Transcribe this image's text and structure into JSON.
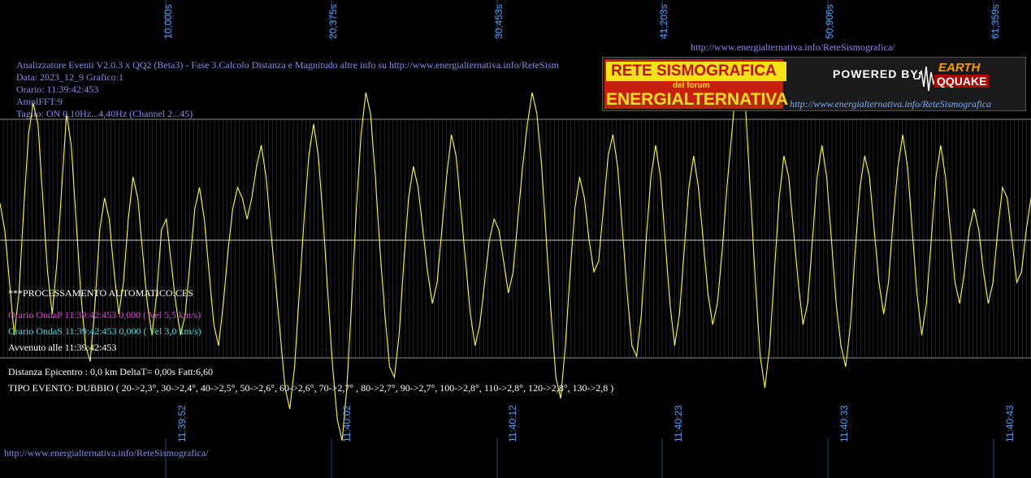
{
  "header": {
    "line1": "Analizzatore Eventi V2.0.3 x QQ2 (Beta3) - Fase 3.Calcolo Distanza e Magnitudo altre info su http://www.energialternativa.info/ReteSism",
    "line2": "Data: 2023_12_9 Grafico:1",
    "line3": "Orario: 11:39:42:453",
    "line4": "AmplFFT:9",
    "line5": "Taglio: ON 0,10Hz...4,40Hz      (Channel 2...45)"
  },
  "top_url": "http://www.energialternativa.info/ReteSismografica/",
  "bottom_url": "http://www.energialternativa.info/ReteSismografica/",
  "processing": {
    "title": "***PROCESSAMENTO AUTOMATICO:CES",
    "onda_p": "Orario OndaP 11:39:42:453  0,000 ( Vel 5,5 km/s)",
    "onda_s": "Orario OndaS 11:39:42:453  0,000 ( Vel 3,0 km/s)",
    "avvenuto": "Avvenuto alle 11:39:42:453",
    "distanza": "Distanza Epicentro : 0,0 km DeltaT= 0,00s  Fatt:6,60",
    "tipo": "TIPO EVENTO: DUBBIO ( 20->2,3°, 30->2,4°, 40->2,5°, 50->2,6°, 60->2,6°, 70->2,7° , 80->2,7°, 90->2,7°, 100->2,8°, 110->2,8°, 120->2,8°, 130->2,8 )"
  },
  "top_ticks": [
    "10,000s",
    "20,375s",
    "30,453s",
    "41,203s",
    "50,906s",
    "61,359s"
  ],
  "bottom_ticks": [
    "11:39:52",
    "11:40:02",
    "11:40:12",
    "11:40:23",
    "11:40:33",
    "11:40:43"
  ],
  "logo": {
    "rete": "RETE SISMOGRAFICA",
    "forum": "del forum",
    "energ": "ENERGIALTERNATIVA",
    "powered": "POWERED BY:",
    "earth": "EARTH",
    "quake": "QQUAKE",
    "url": "http://www.energialternativa.info/ReteSismografica"
  },
  "colors": {
    "trace": "#ffff33",
    "grid": "#8a8a8a",
    "tick": "#4d9fff",
    "text": "#8a8cf0"
  },
  "chart_data": {
    "type": "line",
    "title": "",
    "xlabel": "",
    "ylabel": "",
    "values": [
      0.35,
      0.1,
      -0.4,
      -0.9,
      -0.5,
      0.3,
      1.0,
      1.3,
      1.1,
      0.4,
      -0.3,
      -0.7,
      -0.2,
      0.5,
      1.2,
      0.9,
      0.2,
      -0.5,
      -1.0,
      -1.15,
      -0.6,
      0.1,
      0.4,
      0.2,
      -0.3,
      -0.7,
      -0.4,
      0.2,
      0.6,
      0.4,
      -0.1,
      -0.6,
      -0.9,
      -0.5,
      0.1,
      0.2,
      -0.2,
      -0.6,
      -0.9,
      -0.7,
      -0.2,
      0.3,
      0.5,
      0.2,
      -0.3,
      -0.8,
      -1.0,
      -0.6,
      -0.1,
      0.3,
      0.5,
      0.4,
      0.2,
      0.4,
      0.7,
      0.9,
      0.6,
      0.1,
      -0.4,
      -0.9,
      -1.4,
      -1.6,
      -1.2,
      -0.5,
      0.2,
      0.8,
      1.1,
      0.8,
      0.2,
      -0.5,
      -1.2,
      -1.7,
      -1.9,
      -1.4,
      -0.6,
      0.3,
      1.0,
      1.4,
      1.2,
      0.6,
      -0.1,
      -0.7,
      -1.2,
      -1.3,
      -0.9,
      -0.2,
      0.4,
      0.7,
      0.5,
      0.1,
      -0.3,
      -0.6,
      -0.4,
      0.1,
      0.6,
      1.0,
      0.8,
      0.3,
      -0.2,
      -0.7,
      -1.0,
      -0.8,
      -0.4,
      0.0,
      0.2,
      0.1,
      -0.2,
      -0.5,
      -0.3,
      0.2,
      0.7,
      1.1,
      1.4,
      1.2,
      0.7,
      0.0,
      -0.7,
      -1.3,
      -1.5,
      -1.0,
      -0.3,
      0.3,
      0.6,
      0.4,
      0.0,
      -0.3,
      -0.2,
      0.3,
      0.8,
      1.0,
      0.7,
      0.1,
      -0.5,
      -1.0,
      -1.1,
      -0.7,
      0.0,
      0.6,
      0.9,
      0.6,
      0.0,
      -0.6,
      -1.0,
      -0.7,
      -0.1,
      0.5,
      0.8,
      0.5,
      0.0,
      -0.5,
      -0.8,
      -0.6,
      -0.1,
      0.5,
      1.0,
      1.5,
      1.7,
      1.2,
      0.4,
      -0.4,
      -1.1,
      -1.4,
      -1.0,
      -0.3,
      0.4,
      0.8,
      0.6,
      0.1,
      -0.4,
      -0.8,
      -0.6,
      0.0,
      0.6,
      0.9,
      0.6,
      0.0,
      -0.6,
      -1.0,
      -1.2,
      -0.8,
      -0.1,
      0.5,
      0.8,
      0.6,
      0.1,
      -0.4,
      -0.7,
      -0.4,
      0.2,
      0.7,
      1.0,
      0.7,
      0.1,
      -0.5,
      -0.9,
      -0.6,
      0.0,
      0.6,
      0.9,
      0.6,
      0.1,
      -0.4,
      -0.6,
      -0.3,
      0.1,
      0.3,
      0.1,
      -0.3,
      -0.6,
      -0.4,
      0.1,
      0.5,
      0.4,
      0.0,
      -0.4,
      -0.3,
      0.1,
      0.4
    ]
  }
}
